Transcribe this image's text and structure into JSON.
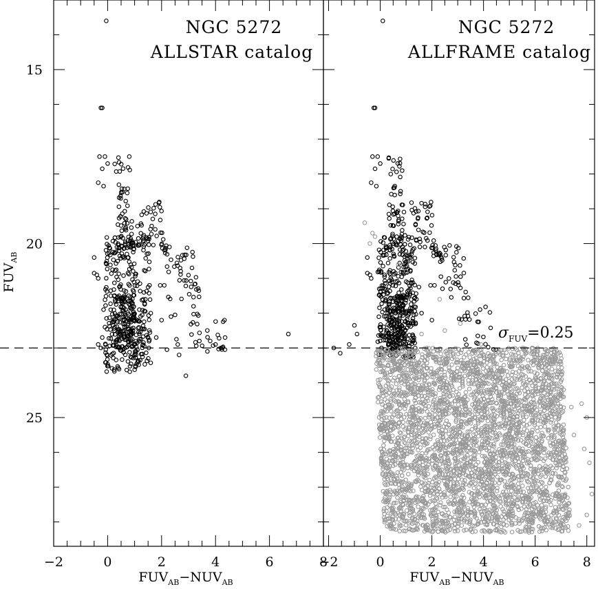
{
  "chart_data": {
    "type": "scatter",
    "y_axis": {
      "label": "FUV",
      "label_sub": "AB",
      "range": [
        13.0,
        28.7
      ],
      "inverted": true,
      "ticks": [
        15,
        20,
        25
      ]
    },
    "x_axis": {
      "label_main": "FUV",
      "label_sub1": "AB",
      "label_dash": "−NUV",
      "label_sub2": "AB"
    },
    "threshold": {
      "y": 23.0,
      "style": "dashed",
      "label_symbol": "σ",
      "label_sub": "FUV",
      "label_value": "=0.25"
    },
    "panels": [
      {
        "title_line1": "NGC 5272",
        "title_line2": "ALLSTAR catalog",
        "xlim": [
          -2.0,
          8.0
        ],
        "xticks": [
          -2,
          0,
          2,
          4,
          6,
          8
        ],
        "xtick_labels": [
          "−2",
          "0",
          "2",
          "4",
          "6",
          "8"
        ],
        "series": [
          {
            "color": "#000000",
            "points": [
              [
                -0.05,
                13.6
              ],
              [
                -0.2,
                16.1
              ],
              [
                -0.25,
                16.1
              ],
              [
                -0.3,
                17.5
              ],
              [
                -0.1,
                17.5
              ],
              [
                0.0,
                17.7
              ],
              [
                -0.2,
                17.85
              ],
              [
                -0.35,
                18.25
              ],
              [
                -0.15,
                18.35
              ],
              [
                6.7,
                22.6
              ],
              [
                2.9,
                23.8
              ],
              [
                -0.5,
                20.4
              ],
              [
                -0.5,
                20.85
              ],
              [
                -0.4,
                20.9
              ],
              [
                -0.35,
                21.0
              ],
              [
                -0.25,
                23.0
              ],
              [
                -0.35,
                22.9
              ],
              [
                -0.2,
                22.7
              ],
              [
                -0.1,
                22.4
              ],
              [
                -0.15,
                21.9
              ],
              [
                2.35,
                22.1
              ],
              [
                2.5,
                22.05
              ],
              [
                2.6,
                22.9
              ],
              [
                2.65,
                23.2
              ],
              [
                2.55,
                22.75
              ],
              [
                3.4,
                22.8
              ],
              [
                3.7,
                23.1
              ],
              [
                4.0,
                22.9
              ],
              [
                4.2,
                23.0
              ],
              [
                4.35,
                23.05
              ],
              [
                3.8,
                22.8
              ],
              [
                1.95,
                21.2
              ],
              [
                2.1,
                21.2
              ],
              [
                1.5,
                21.25
              ],
              [
                1.6,
                22.0
              ],
              [
                1.4,
                21.6
              ],
              [
                2.0,
                22.2
              ],
              [
                1.2,
                21.15
              ],
              [
                1.8,
                22.7
              ],
              [
                2.2,
                23.05
              ],
              [
                1.1,
                22.85
              ]
            ],
            "band": [
              {
                "x": [
                  0.25,
                  0.85
                ],
                "y": [
                  17.5,
                  20.3
                ],
                "slope": 0.42,
                "n": 55
              },
              {
                "x": [
                  1.0,
                  2.0
                ],
                "y": [
                  18.8,
                  20.2
                ],
                "slope": 0.9,
                "n": 40
              },
              {
                "x": [
                  2.0,
                  3.2
                ],
                "y": [
                  20.0,
                  21.6
                ],
                "slope": 1.2,
                "n": 45
              },
              {
                "x": [
                  3.0,
                  4.4
                ],
                "y": [
                  21.8,
                  23.1
                ],
                "slope": 0.9,
                "n": 25
              },
              {
                "x": [
                  -0.1,
                  1.6
                ],
                "y": [
                  19.8,
                  23.7
                ],
                "slope": 0.0,
                "n": 320
              },
              {
                "x": [
                  0.2,
                  1.0
                ],
                "y": [
                  21.5,
                  23.0
                ],
                "slope": 0.0,
                "n": 110
              }
            ]
          }
        ]
      },
      {
        "title_line1": "NGC 5272",
        "title_line2": "ALLFRAME catalog",
        "xlim": [
          -2.2,
          8.3
        ],
        "xticks": [
          -2,
          0,
          2,
          4,
          6,
          8
        ],
        "xtick_labels": [
          "−2",
          "0",
          "2",
          "4",
          "6",
          "8"
        ],
        "series": [
          {
            "color": "#000000",
            "points": [
              [
                0.1,
                13.6
              ],
              [
                -0.2,
                16.1
              ],
              [
                -0.25,
                16.1
              ],
              [
                -0.3,
                17.5
              ],
              [
                -0.1,
                17.5
              ],
              [
                0.0,
                17.7
              ],
              [
                -0.2,
                17.85
              ],
              [
                -0.35,
                18.25
              ],
              [
                -0.15,
                18.35
              ],
              [
                -0.5,
                20.4
              ],
              [
                -0.5,
                20.85
              ],
              [
                -0.4,
                20.9
              ],
              [
                -0.35,
                21.0
              ],
              [
                -1.2,
                22.9
              ],
              [
                -1.8,
                23.0
              ],
              [
                -1.55,
                23.15
              ],
              [
                -0.9,
                22.6
              ],
              [
                -1.0,
                22.35
              ],
              [
                1.95,
                21.2
              ],
              [
                2.1,
                21.2
              ],
              [
                1.5,
                21.25
              ],
              [
                1.6,
                22.0
              ],
              [
                1.4,
                21.6
              ],
              [
                2.0,
                22.2
              ],
              [
                1.2,
                21.15
              ]
            ],
            "band": [
              {
                "x": [
                  0.25,
                  0.85
                ],
                "y": [
                  17.5,
                  20.3
                ],
                "slope": 0.42,
                "n": 55
              },
              {
                "x": [
                  1.0,
                  2.0
                ],
                "y": [
                  18.8,
                  20.2
                ],
                "slope": 0.9,
                "n": 40
              },
              {
                "x": [
                  2.0,
                  3.2
                ],
                "y": [
                  20.0,
                  21.6
                ],
                "slope": 1.2,
                "n": 45
              },
              {
                "x": [
                  3.0,
                  4.4
                ],
                "y": [
                  21.8,
                  23.1
                ],
                "slope": 0.9,
                "n": 25
              },
              {
                "x": [
                  -0.1,
                  1.4
                ],
                "y": [
                  19.8,
                  23.3
                ],
                "slope": 0.0,
                "n": 300
              },
              {
                "x": [
                  0.2,
                  1.0
                ],
                "y": [
                  21.5,
                  23.1
                ],
                "slope": 0.0,
                "n": 140
              }
            ]
          },
          {
            "color": "#999999",
            "points": [
              [
                -0.6,
                19.4
              ],
              [
                -0.3,
                19.7
              ],
              [
                -0.2,
                19.8
              ],
              [
                -0.4,
                20.0
              ],
              [
                1.0,
                20.8
              ],
              [
                0.7,
                20.6
              ],
              [
                2.3,
                21.6
              ],
              [
                2.5,
                22.5
              ],
              [
                3.1,
                22.3
              ],
              [
                3.9,
                22.9
              ],
              [
                1.6,
                22.6
              ],
              [
                1.8,
                23.0
              ],
              [
                6.3,
                24.1
              ],
              [
                6.6,
                24.3
              ],
              [
                7.1,
                24.2
              ],
              [
                7.4,
                24.7
              ],
              [
                7.8,
                24.6
              ],
              [
                8.0,
                25.0
              ],
              [
                7.5,
                25.5
              ],
              [
                7.9,
                25.9
              ],
              [
                8.1,
                26.3
              ],
              [
                8.2,
                27.2
              ],
              [
                8.0,
                27.8
              ],
              [
                7.7,
                28.1
              ],
              [
                7.2,
                27.6
              ],
              [
                6.9,
                26.7
              ],
              [
                5.0,
                24.1
              ],
              [
                5.4,
                24.5
              ],
              [
                5.9,
                24.8
              ]
            ],
            "band": [
              {
                "x": [
                  -0.2,
                  7.0
                ],
                "y": [
                  23.0,
                  28.3
                ],
                "slope": 0.6,
                "n": 3600
              }
            ]
          }
        ]
      }
    ]
  }
}
